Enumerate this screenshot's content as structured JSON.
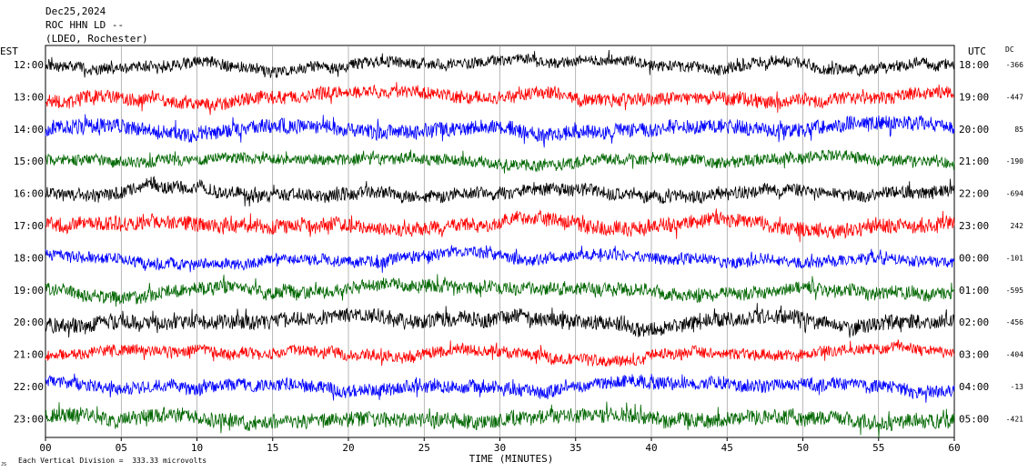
{
  "header": {
    "date": "Dec25,2024",
    "station": "ROC HHN LD --",
    "network": "(LDEO, Rochester)"
  },
  "left_axis_title": "EST",
  "right_axis_title": "UTC",
  "dc_title": "DC",
  "footer": {
    "scale_note": "Each Vertical Division =  333.33 microvolts",
    "corner_mark": "JS"
  },
  "chart_data": {
    "type": "line",
    "title": "",
    "xlabel": "TIME (MINUTES)",
    "ylabel": "",
    "xlim": [
      0,
      60
    ],
    "x_ticks": [
      "00",
      "05",
      "10",
      "15",
      "20",
      "25",
      "30",
      "35",
      "40",
      "45",
      "50",
      "55",
      "60"
    ],
    "grid": "vertical lines every 5 minutes",
    "series_colors": [
      "#000000",
      "#ff0000",
      "#0000ff",
      "#006600"
    ],
    "series": [
      {
        "est": "12:00",
        "utc": "18:00",
        "dc": "-366",
        "color": "#000000"
      },
      {
        "est": "13:00",
        "utc": "19:00",
        "dc": "-447",
        "color": "#ff0000"
      },
      {
        "est": "14:00",
        "utc": "20:00",
        "dc": "85",
        "color": "#0000ff"
      },
      {
        "est": "15:00",
        "utc": "21:00",
        "dc": "-190",
        "color": "#006600"
      },
      {
        "est": "16:00",
        "utc": "22:00",
        "dc": "-694",
        "color": "#000000"
      },
      {
        "est": "17:00",
        "utc": "23:00",
        "dc": "242",
        "color": "#ff0000"
      },
      {
        "est": "18:00",
        "utc": "00:00",
        "dc": "-101",
        "color": "#0000ff"
      },
      {
        "est": "19:00",
        "utc": "01:00",
        "dc": "-595",
        "color": "#006600"
      },
      {
        "est": "20:00",
        "utc": "02:00",
        "dc": "-456",
        "color": "#000000"
      },
      {
        "est": "21:00",
        "utc": "03:00",
        "dc": "-404",
        "color": "#ff0000"
      },
      {
        "est": "22:00",
        "utc": "04:00",
        "dc": "-13",
        "color": "#0000ff"
      },
      {
        "est": "23:00",
        "utc": "05:00",
        "dc": "-421",
        "color": "#006600"
      }
    ]
  }
}
